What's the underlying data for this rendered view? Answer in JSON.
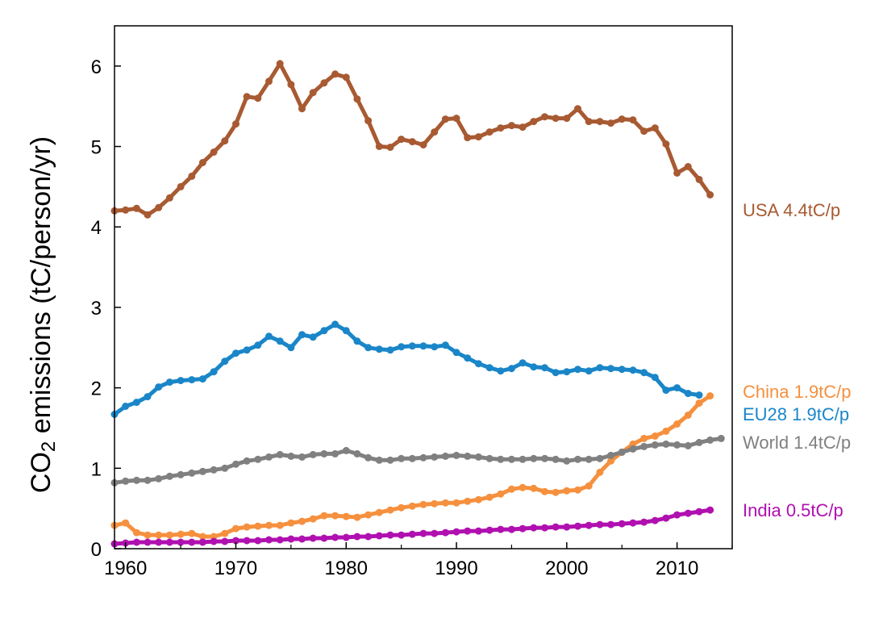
{
  "chart_data": {
    "type": "line",
    "ylabel": {
      "pre": "CO",
      "sub": "2",
      "post": " emissions (tC/person/yr)"
    },
    "xlim": [
      1959,
      2015
    ],
    "ylim": [
      0,
      6.5
    ],
    "xticks": [
      1960,
      1970,
      1980,
      1990,
      2000,
      2010
    ],
    "yticks": [
      0,
      1,
      2,
      3,
      4,
      5,
      6
    ],
    "grid": false,
    "x_start": 1959,
    "series": [
      {
        "name": "USA",
        "label": "USA 4.4tC/p",
        "color": "#a85a32",
        "values": [
          4.2,
          4.21,
          4.23,
          4.15,
          4.24,
          4.36,
          4.5,
          4.63,
          4.8,
          4.93,
          5.07,
          5.28,
          5.62,
          5.6,
          5.81,
          6.03,
          5.77,
          5.47,
          5.67,
          5.79,
          5.9,
          5.86,
          5.59,
          5.32,
          5.0,
          4.99,
          5.09,
          5.06,
          5.02,
          5.18,
          5.34,
          5.35,
          5.11,
          5.12,
          5.18,
          5.23,
          5.26,
          5.24,
          5.31,
          5.37,
          5.35,
          5.35,
          5.47,
          5.31,
          5.31,
          5.29,
          5.34,
          5.33,
          5.19,
          5.23,
          5.03,
          4.67,
          4.75,
          4.59,
          4.4
        ]
      },
      {
        "name": "EU28",
        "label": "EU28 1.9tC/p",
        "color": "#1a86c8",
        "values": [
          1.67,
          1.77,
          1.82,
          1.89,
          2.01,
          2.07,
          2.09,
          2.1,
          2.11,
          2.2,
          2.33,
          2.43,
          2.47,
          2.53,
          2.64,
          2.58,
          2.5,
          2.66,
          2.63,
          2.71,
          2.79,
          2.71,
          2.58,
          2.5,
          2.48,
          2.47,
          2.51,
          2.52,
          2.52,
          2.51,
          2.53,
          2.44,
          2.37,
          2.3,
          2.25,
          2.21,
          2.24,
          2.31,
          2.26,
          2.25,
          2.19,
          2.2,
          2.23,
          2.21,
          2.25,
          2.24,
          2.23,
          2.22,
          2.19,
          2.13,
          1.97,
          2.0,
          1.93,
          1.91
        ]
      },
      {
        "name": "China",
        "label": "China 1.9tC/p",
        "color": "#f5903e",
        "values": [
          0.29,
          0.32,
          0.2,
          0.17,
          0.17,
          0.17,
          0.18,
          0.19,
          0.15,
          0.15,
          0.19,
          0.25,
          0.27,
          0.28,
          0.29,
          0.29,
          0.32,
          0.34,
          0.37,
          0.41,
          0.41,
          0.4,
          0.39,
          0.42,
          0.45,
          0.48,
          0.51,
          0.53,
          0.55,
          0.56,
          0.57,
          0.57,
          0.59,
          0.61,
          0.64,
          0.68,
          0.74,
          0.76,
          0.75,
          0.71,
          0.7,
          0.72,
          0.73,
          0.78,
          0.95,
          1.09,
          1.2,
          1.3,
          1.37,
          1.4,
          1.46,
          1.55,
          1.66,
          1.81,
          1.9
        ]
      },
      {
        "name": "World",
        "label": "World 1.4tC/p",
        "color": "#808080",
        "values": [
          0.82,
          0.84,
          0.85,
          0.85,
          0.87,
          0.9,
          0.92,
          0.94,
          0.96,
          0.98,
          1.0,
          1.05,
          1.09,
          1.11,
          1.14,
          1.17,
          1.15,
          1.14,
          1.17,
          1.18,
          1.18,
          1.22,
          1.18,
          1.13,
          1.1,
          1.1,
          1.12,
          1.12,
          1.13,
          1.14,
          1.15,
          1.16,
          1.15,
          1.14,
          1.12,
          1.11,
          1.11,
          1.11,
          1.12,
          1.12,
          1.11,
          1.09,
          1.11,
          1.11,
          1.12,
          1.16,
          1.2,
          1.24,
          1.27,
          1.29,
          1.3,
          1.29,
          1.28,
          1.32,
          1.35,
          1.37
        ]
      },
      {
        "name": "India",
        "label": "India 0.5tC/p",
        "color": "#b010b0",
        "values": [
          0.06,
          0.07,
          0.08,
          0.08,
          0.08,
          0.08,
          0.08,
          0.08,
          0.08,
          0.09,
          0.09,
          0.1,
          0.1,
          0.1,
          0.11,
          0.11,
          0.12,
          0.12,
          0.13,
          0.13,
          0.14,
          0.14,
          0.15,
          0.15,
          0.16,
          0.17,
          0.17,
          0.18,
          0.19,
          0.19,
          0.2,
          0.21,
          0.22,
          0.22,
          0.23,
          0.24,
          0.24,
          0.25,
          0.26,
          0.26,
          0.27,
          0.27,
          0.28,
          0.29,
          0.3,
          0.3,
          0.31,
          0.32,
          0.33,
          0.35,
          0.38,
          0.42,
          0.44,
          0.46,
          0.48
        ]
      }
    ]
  }
}
